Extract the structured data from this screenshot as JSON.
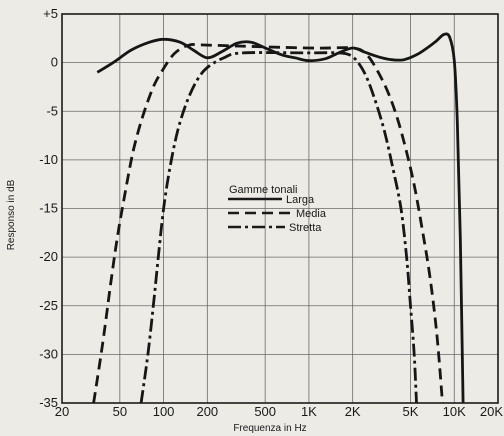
{
  "chart_data": {
    "type": "line",
    "xlabel": "Frequenza in Hz",
    "ylabel": "Responso in dB",
    "x_scale": "log",
    "xlim": [
      20,
      20000
    ],
    "ylim": [
      -35,
      5
    ],
    "grid": true,
    "x_ticks": [
      {
        "value": 20,
        "label": "20"
      },
      {
        "value": 50,
        "label": "50"
      },
      {
        "value": 100,
        "label": "100"
      },
      {
        "value": 200,
        "label": "200"
      },
      {
        "value": 500,
        "label": "500"
      },
      {
        "value": 1000,
        "label": "1K"
      },
      {
        "value": 2000,
        "label": "2K"
      },
      {
        "value": 5000,
        "label": "5K"
      },
      {
        "value": 10000,
        "label": "10K"
      },
      {
        "value": 20000,
        "label": "20K"
      }
    ],
    "y_ticks": [
      {
        "value": 5,
        "label": "+5"
      },
      {
        "value": 0,
        "label": "0"
      },
      {
        "value": -5,
        "label": "-5"
      },
      {
        "value": -10,
        "label": "-10"
      },
      {
        "value": -15,
        "label": "-15"
      },
      {
        "value": -20,
        "label": "-20"
      },
      {
        "value": -25,
        "label": "-25"
      },
      {
        "value": -30,
        "label": "-30"
      },
      {
        "value": -35,
        "label": "-35"
      }
    ],
    "legend": {
      "title": "Gamme tonali",
      "placement": "center"
    },
    "series": [
      {
        "name": "Larga",
        "style": "solid",
        "points": [
          [
            35,
            -1
          ],
          [
            45,
            0
          ],
          [
            60,
            1.3
          ],
          [
            80,
            2.1
          ],
          [
            100,
            2.4
          ],
          [
            130,
            2.1
          ],
          [
            160,
            1.3
          ],
          [
            200,
            0.5
          ],
          [
            250,
            1.1
          ],
          [
            320,
            2
          ],
          [
            400,
            2.1
          ],
          [
            500,
            1.5
          ],
          [
            650,
            0.8
          ],
          [
            800,
            0.5
          ],
          [
            1000,
            0.2
          ],
          [
            1300,
            0.4
          ],
          [
            1600,
            1
          ],
          [
            2000,
            1.5
          ],
          [
            2400,
            1.1
          ],
          [
            3000,
            0.6
          ],
          [
            3700,
            0.3
          ],
          [
            4500,
            0.3
          ],
          [
            5500,
            0.8
          ],
          [
            6500,
            1.5
          ],
          [
            7500,
            2.2
          ],
          [
            8500,
            2.9
          ],
          [
            9300,
            2.6
          ],
          [
            10000,
            0.2
          ],
          [
            10500,
            -6
          ],
          [
            11000,
            -18
          ],
          [
            11500,
            -35
          ]
        ]
      },
      {
        "name": "Media",
        "style": "dashed",
        "points": [
          [
            33,
            -35
          ],
          [
            38,
            -29
          ],
          [
            43,
            -23
          ],
          [
            48,
            -18
          ],
          [
            55,
            -13
          ],
          [
            62,
            -9
          ],
          [
            72,
            -5.5
          ],
          [
            85,
            -2.5
          ],
          [
            100,
            -0.6
          ],
          [
            120,
            1
          ],
          [
            150,
            1.8
          ],
          [
            200,
            1.8
          ],
          [
            1000,
            1.5
          ],
          [
            2000,
            1.5
          ],
          [
            2500,
            0.8
          ],
          [
            3000,
            -1
          ],
          [
            3600,
            -3.5
          ],
          [
            4300,
            -7
          ],
          [
            5200,
            -12
          ],
          [
            6000,
            -17
          ],
          [
            6800,
            -22
          ],
          [
            7600,
            -28
          ],
          [
            8300,
            -35
          ]
        ]
      },
      {
        "name": "Stretta",
        "style": "dashdot",
        "points": [
          [
            70,
            -35
          ],
          [
            78,
            -30
          ],
          [
            85,
            -25
          ],
          [
            92,
            -20
          ],
          [
            100,
            -15
          ],
          [
            110,
            -11
          ],
          [
            125,
            -7
          ],
          [
            145,
            -4
          ],
          [
            170,
            -1.8
          ],
          [
            200,
            -0.5
          ],
          [
            260,
            0.5
          ],
          [
            350,
            1
          ],
          [
            1000,
            1
          ],
          [
            1600,
            1
          ],
          [
            2000,
            0.6
          ],
          [
            2400,
            -1
          ],
          [
            2800,
            -3.5
          ],
          [
            3300,
            -7
          ],
          [
            3800,
            -11
          ],
          [
            4300,
            -15
          ],
          [
            4700,
            -20
          ],
          [
            5000,
            -25
          ],
          [
            5300,
            -30
          ],
          [
            5500,
            -35
          ]
        ]
      }
    ]
  }
}
